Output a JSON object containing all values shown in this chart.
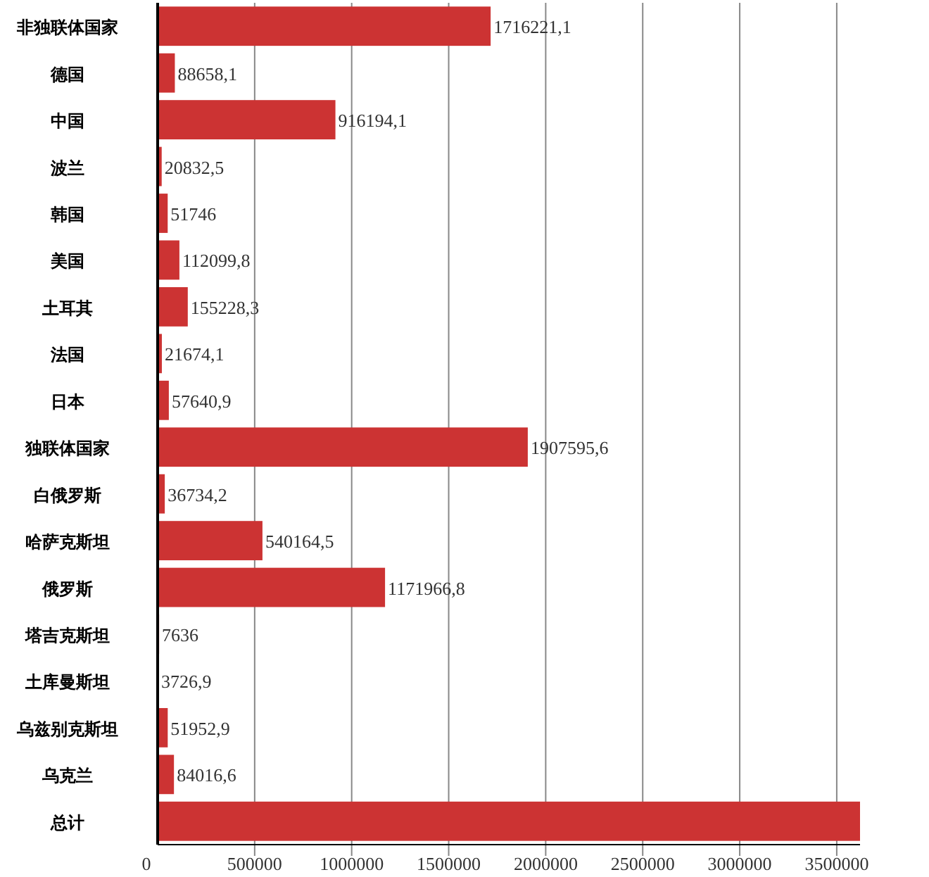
{
  "chart_data": {
    "type": "bar",
    "orientation": "horizontal",
    "categories": [
      "非独联体国家",
      "德国",
      "中国",
      "波兰",
      "韩国",
      "美国",
      "土耳其",
      "法国",
      "日本",
      "独联体国家",
      "白俄罗斯",
      "哈萨克斯坦",
      "俄罗斯",
      "塔吉克斯坦",
      "土库曼斯坦",
      "乌兹别克斯坦",
      "乌克兰",
      "总计"
    ],
    "values": [
      1716221.1,
      88658.1,
      916194.1,
      20832.5,
      51746,
      112099.8,
      155228.3,
      21674.1,
      57640.9,
      1907595.6,
      36734.2,
      540164.5,
      1171966.8,
      7636,
      3726.9,
      51952.9,
      84016.6,
      3620000
    ],
    "value_labels": [
      "1716221,1",
      "88658,1",
      "916194,1",
      "20832,5",
      "51746",
      "112099,8",
      "155228,3",
      "21674,1",
      "57640,9",
      "1907595,6",
      "36734,2",
      "540164,5",
      "1171966,8",
      "7636",
      "3726,9",
      "51952,9",
      "84016,6",
      null
    ],
    "color": "#cc3333",
    "xlim": [
      0,
      3620000
    ],
    "xticks": [
      0,
      500000,
      1000000,
      1500000,
      2000000,
      2500000,
      3000000,
      3500000
    ],
    "grid": "x"
  }
}
